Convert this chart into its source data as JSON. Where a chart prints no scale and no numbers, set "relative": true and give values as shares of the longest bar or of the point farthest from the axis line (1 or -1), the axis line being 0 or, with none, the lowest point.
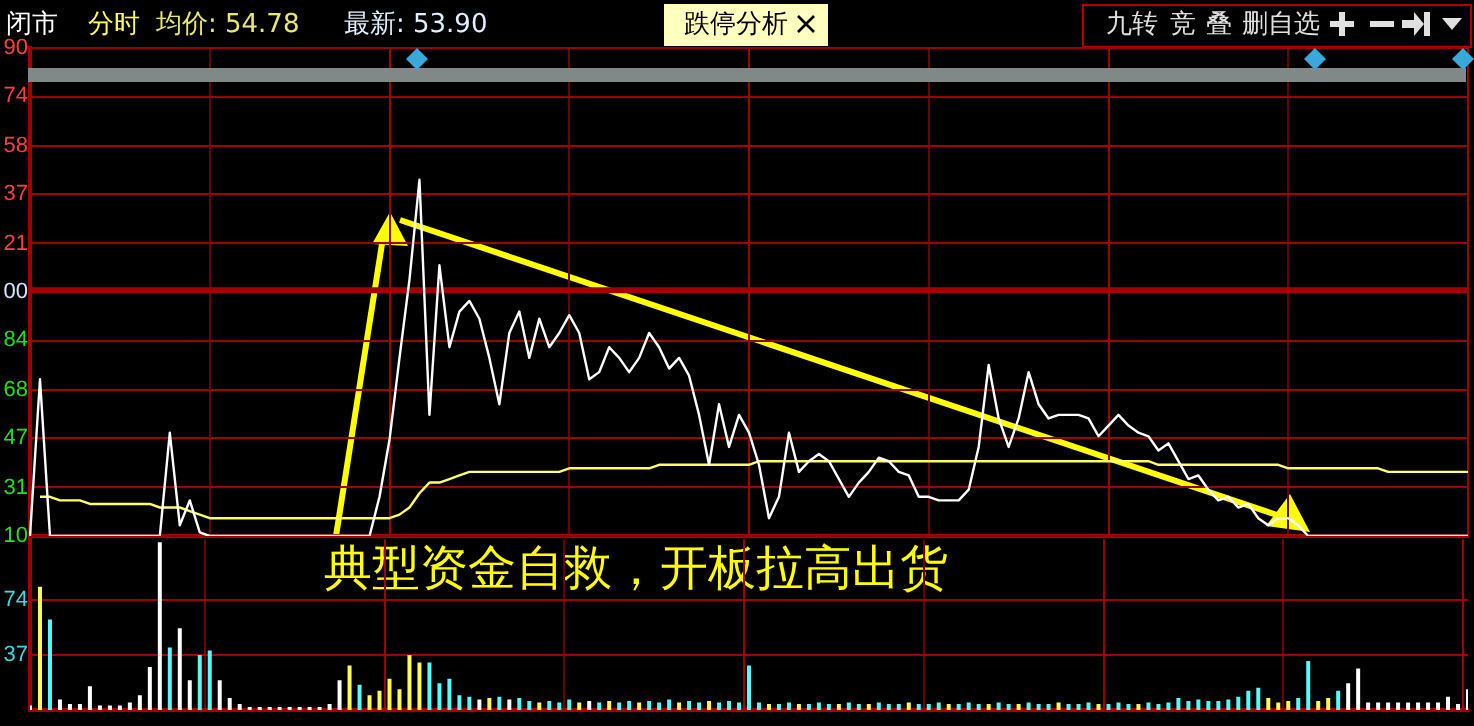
{
  "chart_data": [
    {
      "type": "line",
      "relative": true,
      "categories": [
        null,
        null,
        null,
        null,
        null,
        null,
        null,
        null,
        null,
        null,
        null,
        null,
        null,
        null,
        null,
        null,
        null,
        null,
        null,
        null,
        null,
        null,
        null,
        null,
        null,
        null,
        null,
        null,
        null,
        null,
        null,
        null,
        null,
        null,
        null,
        null,
        null,
        null,
        null,
        null,
        null,
        null,
        null,
        null,
        null,
        null,
        null,
        null,
        null,
        null,
        null,
        null,
        null,
        null,
        null,
        null,
        null,
        null,
        null,
        null,
        null,
        null,
        null,
        null,
        null,
        null,
        null,
        null,
        null,
        null,
        null,
        null,
        null,
        null,
        null,
        null,
        null,
        null,
        null,
        null,
        null,
        null,
        null,
        null,
        null,
        null,
        null,
        null,
        null,
        null,
        null,
        null,
        null,
        null,
        null,
        null,
        null,
        null,
        null,
        null,
        null,
        null,
        null,
        null,
        null,
        null,
        null,
        null,
        null,
        null,
        null,
        null,
        null,
        null,
        null,
        null,
        null,
        null,
        null,
        null,
        null,
        null,
        null,
        null,
        null,
        null,
        null,
        null,
        null,
        null,
        null,
        null,
        null,
        null,
        null,
        null,
        null,
        null,
        null,
        null,
        null,
        null,
        null,
        null,
        null
      ],
      "series": [
        {
          "color": "#ffffff",
          "values": [
            0.0,
            0.44,
            0.0,
            0.0,
            0.0,
            0.0,
            0.0,
            0.0,
            0.0,
            0.0,
            0.0,
            0.0,
            0.0,
            0.0,
            0.29,
            0.03,
            0.1,
            0.01,
            0.0,
            0.0,
            0.0,
            0.0,
            0.0,
            0.0,
            0.0,
            0.0,
            0.0,
            0.0,
            0.0,
            0.0,
            0.0,
            0.0,
            0.0,
            0.0,
            0.0,
            0.11,
            0.27,
            0.5,
            0.72,
            1.0,
            0.34,
            0.76,
            0.53,
            0.63,
            0.66,
            0.61,
            0.5,
            0.37,
            0.57,
            0.63,
            0.5,
            0.61,
            0.53,
            0.57,
            0.62,
            0.57,
            0.44,
            0.46,
            0.53,
            0.5,
            0.46,
            0.5,
            0.57,
            0.53,
            0.47,
            0.5,
            0.45,
            0.34,
            0.2,
            0.37,
            0.25,
            0.34,
            0.29,
            0.2,
            0.05,
            0.11,
            0.29,
            0.18,
            0.21,
            0.23,
            0.21,
            0.16,
            0.11,
            0.15,
            0.18,
            0.22,
            0.21,
            0.18,
            0.17,
            0.11,
            0.11,
            0.1,
            0.1,
            0.1,
            0.13,
            0.25,
            0.48,
            0.33,
            0.25,
            0.33,
            0.46,
            0.37,
            0.33,
            0.34,
            0.34,
            0.34,
            0.33,
            0.28,
            0.31,
            0.34,
            0.31,
            0.29,
            0.28,
            0.24,
            0.26,
            0.21,
            0.16,
            0.17,
            0.13,
            0.1,
            0.11,
            0.08,
            0.09,
            0.05,
            0.03,
            0.05,
            0.05,
            0.03,
            0.0,
            0.0,
            0.0,
            0.0,
            0.0,
            0.0,
            0.0,
            0.0,
            0.0,
            0.0,
            0.0,
            0.0,
            0.0,
            0.0,
            0.0,
            0.0,
            0.0
          ]
        },
        {
          "color": "#ffff66",
          "values": [
            null,
            0.11,
            0.11,
            0.1,
            0.1,
            0.1,
            0.09,
            0.09,
            0.09,
            0.09,
            0.09,
            0.09,
            0.09,
            0.08,
            0.08,
            0.08,
            0.07,
            0.06,
            0.05,
            0.05,
            0.05,
            0.05,
            0.05,
            0.05,
            0.05,
            0.05,
            0.05,
            0.05,
            0.05,
            0.05,
            0.05,
            0.05,
            0.05,
            0.05,
            0.05,
            0.05,
            0.05,
            0.06,
            0.08,
            0.12,
            0.15,
            0.15,
            0.16,
            0.17,
            0.18,
            0.18,
            0.18,
            0.18,
            0.18,
            0.18,
            0.18,
            0.18,
            0.18,
            0.18,
            0.19,
            0.19,
            0.19,
            0.19,
            0.19,
            0.19,
            0.19,
            0.19,
            0.19,
            0.2,
            0.2,
            0.2,
            0.2,
            0.2,
            0.2,
            0.2,
            0.2,
            0.2,
            0.2,
            0.21,
            0.21,
            0.21,
            0.21,
            0.21,
            0.21,
            0.21,
            0.21,
            0.21,
            0.21,
            0.21,
            0.21,
            0.21,
            0.21,
            0.21,
            0.21,
            0.21,
            0.21,
            0.21,
            0.21,
            0.21,
            0.21,
            0.21,
            0.21,
            0.21,
            0.21,
            0.21,
            0.21,
            0.21,
            0.21,
            0.21,
            0.21,
            0.21,
            0.21,
            0.21,
            0.21,
            0.21,
            0.21,
            0.21,
            0.21,
            0.2,
            0.2,
            0.2,
            0.2,
            0.2,
            0.2,
            0.2,
            0.2,
            0.2,
            0.2,
            0.2,
            0.2,
            0.2,
            0.19,
            0.19,
            0.19,
            0.19,
            0.19,
            0.19,
            0.19,
            0.19,
            0.19,
            0.19,
            0.18,
            0.18,
            0.18,
            0.18,
            0.18,
            0.18,
            0.18,
            0.18,
            0.18
          ]
        }
      ],
      "ref_lines": [
        {
          "axis": "y",
          "value": 0.69,
          "color": "#a00000"
        }
      ],
      "grid": true,
      "annotations": [
        "闭市",
        "分时",
        "均价: 54.78",
        "最新: 53.90",
        "跌停分析",
        "九转",
        "竞",
        "叠",
        "删自选",
        "典型资金自救，开板拉高出货",
        "10",
        "31",
        "47",
        "68",
        "84",
        "00",
        "21",
        "37",
        "58",
        "74",
        "90"
      ]
    },
    {
      "type": "bar",
      "categories": [
        null,
        null,
        null,
        null,
        null,
        null,
        null,
        null,
        null,
        null,
        null,
        null,
        null,
        null,
        null,
        null,
        null,
        null,
        null,
        null,
        null,
        null,
        null,
        null,
        null,
        null,
        null,
        null,
        null,
        null,
        null,
        null,
        null,
        null,
        null,
        null,
        null,
        null,
        null,
        null,
        null,
        null,
        null,
        null,
        null,
        null,
        null,
        null,
        null,
        null,
        null,
        null,
        null,
        null,
        null,
        null,
        null,
        null,
        null,
        null,
        null,
        null,
        null,
        null,
        null,
        null,
        null,
        null,
        null,
        null,
        null,
        null,
        null,
        null,
        null,
        null,
        null,
        null,
        null,
        null,
        null,
        null,
        null,
        null,
        null,
        null,
        null,
        null,
        null,
        null,
        null,
        null,
        null,
        null,
        null,
        null,
        null,
        null,
        null,
        null,
        null,
        null,
        null,
        null,
        null,
        null,
        null,
        null,
        null,
        null,
        null,
        null,
        null,
        null,
        null,
        null,
        null,
        null,
        null,
        null,
        null,
        null,
        null,
        null,
        null,
        null,
        null,
        null,
        null,
        null,
        null,
        null,
        null,
        null,
        null,
        null,
        null,
        null,
        null,
        null,
        null,
        null,
        null,
        null,
        null
      ],
      "values": [
        3,
        83,
        61,
        7,
        4,
        4,
        16,
        3,
        3,
        3,
        5,
        10,
        29,
        113,
        42,
        55,
        20,
        37,
        40,
        20,
        8,
        4,
        2,
        2,
        2,
        2,
        2,
        2,
        2,
        2,
        4,
        20,
        30,
        17,
        10,
        13,
        21,
        14,
        37,
        32,
        32,
        18,
        21,
        10,
        9,
        7,
        8,
        9,
        7,
        8,
        6,
        5,
        6,
        5,
        7,
        5,
        6,
        5,
        6,
        5,
        6,
        5,
        6,
        5,
        7,
        5,
        6,
        5,
        6,
        5,
        6,
        5,
        30,
        5,
        4,
        4,
        5,
        4,
        4,
        5,
        4,
        4,
        5,
        4,
        4,
        5,
        4,
        4,
        5,
        4,
        4,
        5,
        4,
        4,
        5,
        4,
        4,
        5,
        4,
        4,
        5,
        4,
        4,
        5,
        4,
        4,
        5,
        4,
        4,
        5,
        4,
        4,
        5,
        4,
        5,
        8,
        6,
        7,
        6,
        6,
        7,
        9,
        13,
        15,
        8,
        5,
        6,
        8,
        33,
        6,
        8,
        13,
        18,
        28,
        5,
        5,
        5,
        5,
        5,
        5,
        5,
        5,
        9,
        4,
        14
      ],
      "colors": [
        "#ffffff",
        "#fcfc54",
        "#54fcfc",
        "#ffffff",
        "#ffffff",
        "#ffffff",
        "#ffffff",
        "#ffffff",
        "#ffffff",
        "#ffffff",
        "#ffffff",
        "#ffffff",
        "#ffffff",
        "#ffffff",
        "#54fcfc",
        "#ffffff",
        "#ffffff",
        "#54fcfc",
        "#54fcfc",
        "#ffffff",
        "#ffffff",
        "#ffffff",
        "#ffffff",
        "#ffffff",
        "#ffffff",
        "#ffffff",
        "#ffffff",
        "#ffffff",
        "#ffffff",
        "#ffffff",
        "#ffffff",
        "#ffffff",
        "#fcfc54",
        "#54fcfc",
        "#fcfc54",
        "#fcfc54",
        "#fcfc54",
        "#fcfc54",
        "#fcfc54",
        "#fcfc54",
        "#54fcfc",
        "#54fcfc",
        "#54fcfc",
        "#54fcfc",
        "#54fcfc",
        "#ffffff",
        "#fcfc54",
        "#54fcfc",
        "#ffffff",
        "#54fcfc",
        "#54fcfc",
        "#fcfc54",
        "#54fcfc",
        "#54fcfc",
        "#54fcfc",
        "#fcfc54",
        "#ffffff",
        "#54fcfc",
        "#fcfc54",
        "#54fcfc",
        "#54fcfc",
        "#fcfc54",
        "#54fcfc",
        "#54fcfc",
        "#54fcfc",
        "#fcfc54",
        "#54fcfc",
        "#54fcfc",
        "#fcfc54",
        "#54fcfc",
        "#54fcfc",
        "#54fcfc",
        "#54fcfc",
        "#54fcfc",
        "#fcfc54",
        "#54fcfc",
        "#54fcfc",
        "#fcfc54",
        "#54fcfc",
        "#54fcfc",
        "#54fcfc",
        "#fcfc54",
        "#54fcfc",
        "#54fcfc",
        "#fcfc54",
        "#54fcfc",
        "#54fcfc",
        "#54fcfc",
        "#fcfc54",
        "#54fcfc",
        "#54fcfc",
        "#54fcfc",
        "#fcfc54",
        "#54fcfc",
        "#54fcfc",
        "#54fcfc",
        "#fcfc54",
        "#54fcfc",
        "#54fcfc",
        "#fcfc54",
        "#54fcfc",
        "#54fcfc",
        "#54fcfc",
        "#fcfc54",
        "#54fcfc",
        "#54fcfc",
        "#54fcfc",
        "#fcfc54",
        "#54fcfc",
        "#54fcfc",
        "#54fcfc",
        "#fcfc54",
        "#54fcfc",
        "#54fcfc",
        "#54fcfc",
        "#54fcfc",
        "#54fcfc",
        "#54fcfc",
        "#54fcfc",
        "#54fcfc",
        "#54fcfc",
        "#54fcfc",
        "#54fcfc",
        "#54fcfc",
        "#fcfc54",
        "#fcfc54",
        "#fcfc54",
        "#54fcfc",
        "#54fcfc",
        "#fcfc54",
        "#fcfc54",
        "#54fcfc",
        "#ffffff",
        "#ffffff",
        "#ffffff",
        "#ffffff",
        "#ffffff",
        "#ffffff",
        "#ffffff",
        "#ffffff",
        "#ffffff",
        "#ffffff",
        "#ffffff",
        "#ffffff",
        "#ffffff"
      ],
      "ylim": [
        0,
        115
      ],
      "yticks": [
        37,
        74
      ],
      "grid": true
    }
  ]
}
